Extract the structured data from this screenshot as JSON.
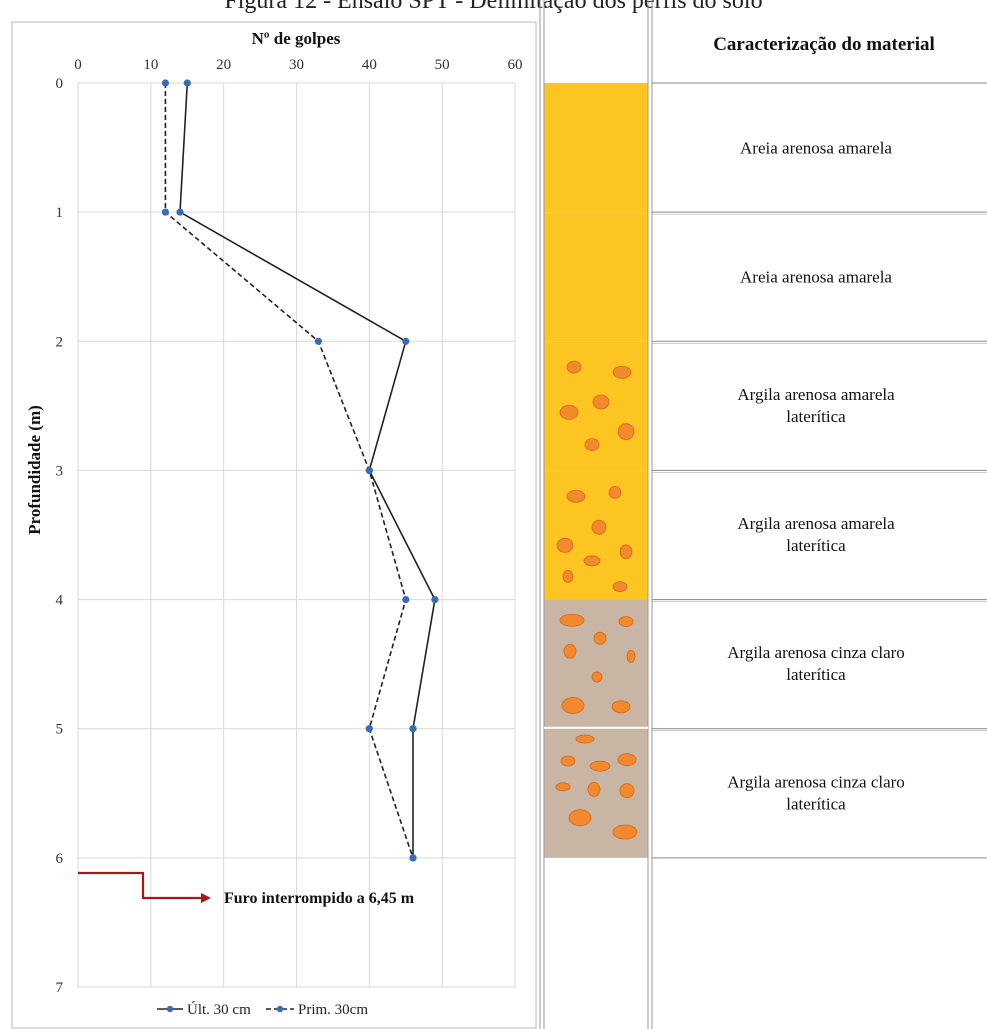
{
  "figure": {
    "title": "Figura 12 - Ensaio SPT - Delimitação dos perfis do solo"
  },
  "chart_data": {
    "type": "line",
    "x_axis_title": "Nº de golpes",
    "y_axis_title": "Profundidade (m)",
    "xlim": [
      0,
      60
    ],
    "ylim": [
      0,
      7
    ],
    "y_inverted": true,
    "x_ticks": [
      "0",
      "10",
      "20",
      "30",
      "40",
      "50",
      "60"
    ],
    "y_ticks": [
      "0",
      "1",
      "2",
      "3",
      "4",
      "5",
      "6",
      "7"
    ],
    "x_position": "top",
    "grid": true,
    "legend_position": "bottom",
    "colors": {
      "series": "#3a6cb5",
      "line": "#222222",
      "annotation": "#a31919"
    },
    "series": [
      {
        "name": "Últ. 30 cm",
        "style": "solid",
        "points": [
          [
            15,
            0
          ],
          [
            14,
            1
          ],
          [
            45,
            2
          ],
          [
            40,
            3
          ],
          [
            49,
            4
          ],
          [
            46,
            5
          ],
          [
            46,
            6
          ]
        ]
      },
      {
        "name": "Prim. 30cm",
        "style": "dashed",
        "points": [
          [
            12,
            0
          ],
          [
            12,
            1
          ],
          [
            33,
            2
          ],
          [
            40,
            3
          ],
          [
            45,
            4
          ],
          [
            40,
            5
          ],
          [
            46,
            6
          ]
        ]
      }
    ],
    "annotation": {
      "text": "Furo interrompido a 6,45 m"
    }
  },
  "profile": {
    "header": "Caracterização do material",
    "colors": {
      "sand": "#fdc521",
      "gray": "#c8b5a4",
      "nodule": "#f28a2d",
      "nodule_edge": "#d9661a"
    },
    "layers": [
      {
        "top": 0,
        "bottom": 1,
        "color": "sand",
        "label": [
          "Areia arenosa amarela"
        ],
        "nodules": false
      },
      {
        "top": 1,
        "bottom": 2,
        "color": "sand",
        "label": [
          "Areia arenosa amarela"
        ],
        "nodules": false
      },
      {
        "top": 2,
        "bottom": 3,
        "color": "sand",
        "label": [
          "Argila arenosa amarela",
          "laterítica"
        ],
        "nodules": true
      },
      {
        "top": 3,
        "bottom": 4,
        "color": "sand",
        "label": [
          "Argila arenosa amarela",
          "laterítica"
        ],
        "nodules": true
      },
      {
        "top": 4,
        "bottom": 5,
        "color": "gray",
        "label": [
          "Argila arenosa cinza claro",
          "laterítica"
        ],
        "nodules": true
      },
      {
        "top": 5,
        "bottom": 6,
        "color": "gray",
        "label": [
          "Argila arenosa cinza claro",
          "laterítica"
        ],
        "nodules": true
      }
    ]
  }
}
